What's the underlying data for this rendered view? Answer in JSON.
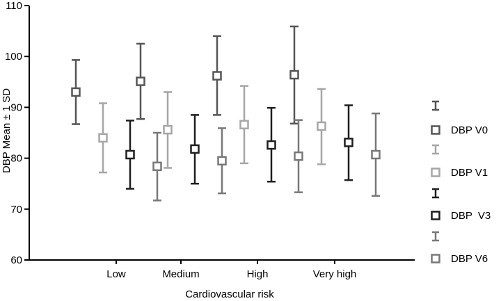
{
  "chart_data": {
    "type": "scatter",
    "subtype": "error-bar",
    "title": "",
    "xlabel": "Cardiovascular risk",
    "ylabel": "DBP Mean ± 1 SD",
    "ylim": [
      60,
      110
    ],
    "yticks": [
      "60",
      "70",
      "80",
      "90",
      "100",
      "110"
    ],
    "categories": [
      "Low",
      "Medium",
      "High",
      "Very high"
    ],
    "grid": false,
    "legend_position": "right",
    "series": [
      {
        "name": "DBP V0",
        "color": "#555555",
        "mean": [
          93.0,
          95.1,
          96.2,
          96.4
        ],
        "lower": [
          86.7,
          87.7,
          88.5,
          86.8
        ],
        "upper": [
          99.3,
          102.5,
          104.0,
          105.9
        ]
      },
      {
        "name": "DBP V1",
        "color": "#a6a6a6",
        "mean": [
          84.0,
          85.6,
          86.6,
          86.3
        ],
        "lower": [
          77.2,
          78.1,
          79.0,
          78.8
        ],
        "upper": [
          90.8,
          93.0,
          94.2,
          93.6
        ]
      },
      {
        "name": "DBP  V3",
        "color": "#1e1e1e",
        "mean": [
          80.7,
          81.8,
          82.6,
          83.1
        ],
        "lower": [
          74.0,
          75.0,
          75.4,
          75.7
        ],
        "upper": [
          87.4,
          88.5,
          89.9,
          90.4
        ]
      },
      {
        "name": "DBP V6",
        "color": "#787878",
        "mean": [
          78.4,
          79.5,
          80.4,
          80.7
        ],
        "lower": [
          71.7,
          73.1,
          73.3,
          72.6
        ],
        "upper": [
          85.0,
          85.9,
          87.5,
          88.8
        ]
      }
    ]
  }
}
